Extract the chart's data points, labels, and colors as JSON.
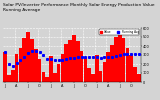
{
  "title": "Solar PV/Inverter Performance Monthly Solar Energy Production Value Running Average",
  "bar_color": "#ff0000",
  "avg_color": "#0000ff",
  "bg_color": "#d4d4d4",
  "plot_bg": "#d4d4d4",
  "grid_color": "#ffffff",
  "values": [
    330,
    80,
    130,
    310,
    380,
    490,
    560,
    480,
    370,
    250,
    110,
    55,
    290,
    105,
    195,
    315,
    425,
    465,
    520,
    455,
    345,
    275,
    155,
    85,
    305,
    125,
    225,
    335,
    415,
    495,
    545,
    490,
    375,
    295,
    165,
    90
  ],
  "running_avg": [
    330,
    205,
    180,
    213,
    240,
    282,
    325,
    345,
    349,
    328,
    295,
    255,
    250,
    243,
    241,
    246,
    255,
    262,
    272,
    279,
    281,
    283,
    281,
    274,
    274,
    272,
    273,
    276,
    281,
    289,
    298,
    307,
    311,
    313,
    313,
    310
  ],
  "ylim": [
    0,
    600
  ],
  "yticks": [
    0,
    100,
    200,
    300,
    400,
    500,
    600
  ],
  "n_bars": 36,
  "title_fontsize": 3.2,
  "tick_fontsize": 2.5
}
